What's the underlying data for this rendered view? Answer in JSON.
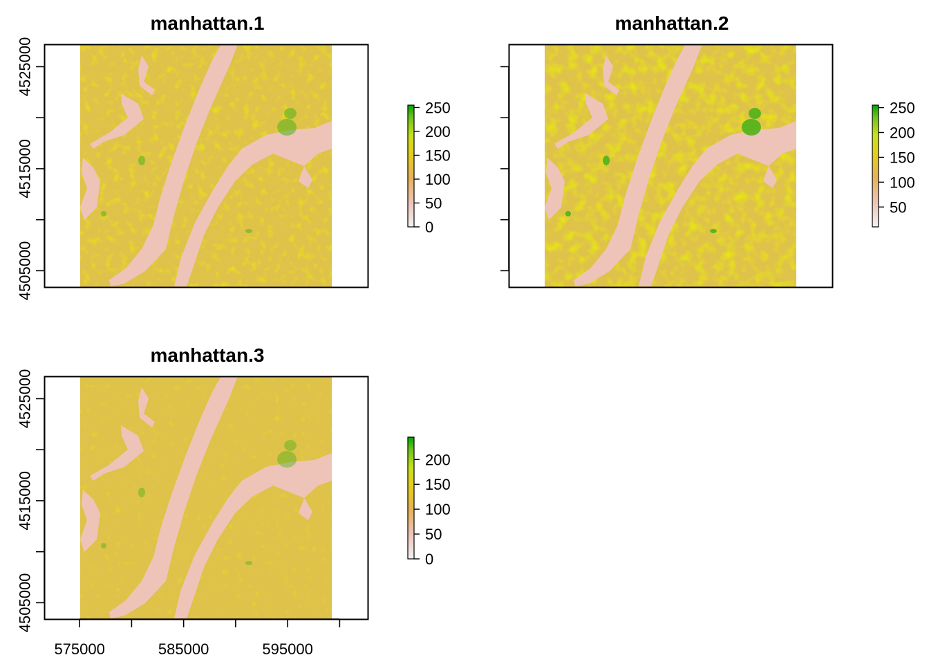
{
  "chart_data": [
    {
      "type": "heatmap",
      "title": "manhattan.1",
      "x_axis_shown": false,
      "y_ticks": [
        4505000,
        4510000,
        4515000,
        4520000,
        4525000
      ],
      "y_tick_labels": [
        "4505000",
        "",
        "4515000",
        "",
        "4525000"
      ],
      "legend_ticks": [
        0,
        50,
        100,
        150,
        200,
        250
      ],
      "legend_labels": [
        "0",
        "50",
        "100",
        "150",
        "200",
        "250"
      ],
      "value_range": [
        0,
        255
      ]
    },
    {
      "type": "heatmap",
      "title": "manhattan.2",
      "x_axis_shown": false,
      "y_ticks": [
        4505000,
        4510000,
        4515000,
        4520000,
        4525000
      ],
      "y_tick_labels": [
        "",
        "",
        "",
        "",
        ""
      ],
      "legend_ticks": [
        50,
        100,
        150,
        200,
        250
      ],
      "legend_labels": [
        "50",
        "100",
        "150",
        "200",
        "250"
      ],
      "value_range": [
        10,
        255
      ]
    },
    {
      "type": "heatmap",
      "title": "manhattan.3",
      "x_axis_shown": true,
      "x_ticks": [
        575000,
        580000,
        585000,
        590000,
        595000,
        600000
      ],
      "x_tick_labels": [
        "575000",
        "",
        "585000",
        "",
        "595000",
        ""
      ],
      "y_ticks": [
        4505000,
        4510000,
        4515000,
        4520000,
        4525000
      ],
      "y_tick_labels": [
        "4505000",
        "",
        "4515000",
        "",
        "4525000"
      ],
      "legend_ticks": [
        0,
        50,
        100,
        150,
        200
      ],
      "legend_labels": [
        "0",
        "50",
        "100",
        "150",
        "200"
      ],
      "value_range": [
        0,
        245
      ]
    }
  ],
  "colors": {
    "ramp": [
      "#f2f2f2",
      "#eec4b9",
      "#e8b15a",
      "#e4cf1a",
      "#c7e21b",
      "#6fc41c",
      "#00a600"
    ],
    "river": "#eec4b9",
    "land": "#dfc24a",
    "frame": "#000000"
  }
}
